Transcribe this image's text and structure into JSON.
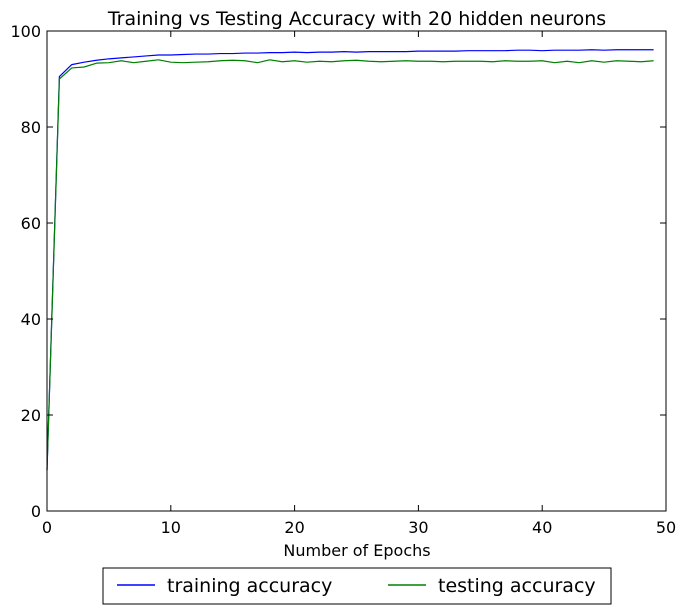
{
  "chart_data": {
    "type": "line",
    "title": "Training vs Testing Accuracy with 20 hidden neurons",
    "xlabel": "Number of Epochs",
    "ylabel": "",
    "xlim": [
      0,
      50
    ],
    "ylim": [
      0,
      100
    ],
    "xticks": [
      0,
      10,
      20,
      30,
      40,
      50
    ],
    "yticks": [
      0,
      20,
      40,
      60,
      80,
      100
    ],
    "grid": false,
    "legend_position": "bottom-center",
    "x": [
      0,
      1,
      2,
      3,
      4,
      5,
      6,
      7,
      8,
      9,
      10,
      11,
      12,
      13,
      14,
      15,
      16,
      17,
      18,
      19,
      20,
      21,
      22,
      23,
      24,
      25,
      26,
      27,
      28,
      29,
      30,
      31,
      32,
      33,
      34,
      35,
      36,
      37,
      38,
      39,
      40,
      41,
      42,
      43,
      44,
      45,
      46,
      47,
      48,
      49
    ],
    "series": [
      {
        "name": "training accuracy",
        "color": "#0000ff",
        "values": [
          8.5,
          90.5,
          93.0,
          93.5,
          93.9,
          94.2,
          94.4,
          94.6,
          94.8,
          95.0,
          95.0,
          95.1,
          95.2,
          95.2,
          95.3,
          95.3,
          95.4,
          95.4,
          95.5,
          95.5,
          95.6,
          95.5,
          95.6,
          95.6,
          95.7,
          95.6,
          95.7,
          95.7,
          95.7,
          95.7,
          95.8,
          95.8,
          95.8,
          95.8,
          95.9,
          95.9,
          95.9,
          95.9,
          96.0,
          96.0,
          95.9,
          96.0,
          96.0,
          96.0,
          96.1,
          96.0,
          96.1,
          96.1,
          96.1,
          96.1
        ]
      },
      {
        "name": "testing accuracy",
        "color": "#008000",
        "values": [
          8.5,
          90.0,
          92.3,
          92.5,
          93.3,
          93.4,
          93.8,
          93.4,
          93.7,
          94.0,
          93.5,
          93.4,
          93.5,
          93.6,
          93.8,
          93.9,
          93.8,
          93.4,
          94.0,
          93.6,
          93.8,
          93.5,
          93.7,
          93.6,
          93.8,
          93.9,
          93.7,
          93.6,
          93.7,
          93.8,
          93.7,
          93.7,
          93.6,
          93.7,
          93.7,
          93.7,
          93.6,
          93.8,
          93.7,
          93.7,
          93.8,
          93.4,
          93.7,
          93.4,
          93.8,
          93.5,
          93.8,
          93.7,
          93.6,
          93.8
        ]
      }
    ]
  }
}
